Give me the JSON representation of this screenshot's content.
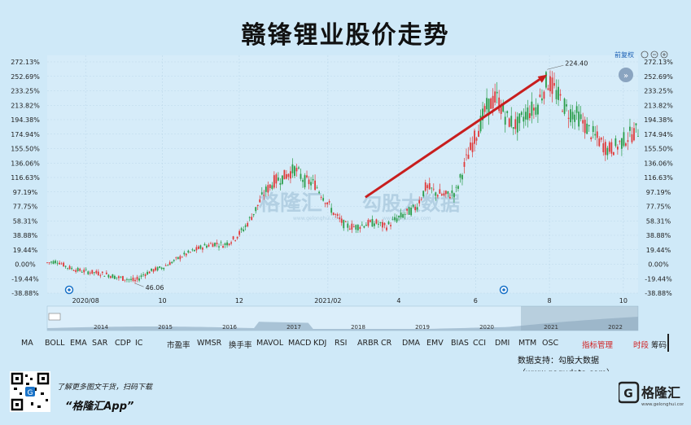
{
  "title": "赣锋锂业股价走势",
  "top_controls": {
    "adjust_label": "前复权",
    "icons": [
      "undo-icon",
      "zoom-out-icon",
      "zoom-in-icon"
    ]
  },
  "annotation": {
    "peak_label": "224.40",
    "low_label": "46.06"
  },
  "watermark": {
    "brand": "格隆汇",
    "brand_sub": "www.gelonghui.com",
    "data_brand": "勾股大数据",
    "data_sub": "www.gogudata.com"
  },
  "chart_data": {
    "type": "candlestick",
    "y_ticks_pct": [
      "272.13%",
      "252.69%",
      "233.25%",
      "213.82%",
      "194.38%",
      "174.94%",
      "155.50%",
      "136.06%",
      "116.63%",
      "97.19%",
      "77.75%",
      "58.31%",
      "38.88%",
      "19.44%",
      "0.00%",
      "-19.44%",
      "-38.88%"
    ],
    "y_ticks_right": [
      "272.13%",
      "252.69%",
      "233.25%",
      "213.82%",
      "194.38%",
      "174.94%",
      "155.50%",
      "136.06%",
      "116.63%",
      "97.19%",
      "77.75%",
      "58.31%",
      "38.88%",
      "19.44%",
      "0.00%",
      "-19.44%",
      "-38.88%"
    ],
    "ylim": [
      -38.88,
      272.13
    ],
    "x_ticks": [
      {
        "label": "2020/08",
        "pos": 0.065
      },
      {
        "label": "10",
        "pos": 0.195
      },
      {
        "label": "12",
        "pos": 0.325
      },
      {
        "label": "2021/02",
        "pos": 0.475
      },
      {
        "label": "4",
        "pos": 0.595
      },
      {
        "label": "6",
        "pos": 0.725
      },
      {
        "label": "8",
        "pos": 0.85
      },
      {
        "label": "10",
        "pos": 0.975
      }
    ],
    "trend_points_pct": [
      [
        0.0,
        2
      ],
      [
        0.02,
        4
      ],
      [
        0.04,
        -4
      ],
      [
        0.06,
        -8
      ],
      [
        0.08,
        -10
      ],
      [
        0.1,
        -12
      ],
      [
        0.12,
        -14
      ],
      [
        0.14,
        -18
      ],
      [
        0.16,
        -20
      ],
      [
        0.175,
        -23
      ],
      [
        0.19,
        -14
      ],
      [
        0.21,
        -8
      ],
      [
        0.23,
        -4
      ],
      [
        0.25,
        4
      ],
      [
        0.27,
        12
      ],
      [
        0.29,
        18
      ],
      [
        0.31,
        24
      ],
      [
        0.33,
        28
      ],
      [
        0.35,
        26
      ],
      [
        0.37,
        34
      ],
      [
        0.39,
        48
      ],
      [
        0.41,
        70
      ],
      [
        0.43,
        96
      ],
      [
        0.45,
        112
      ],
      [
        0.47,
        118
      ],
      [
        0.49,
        128
      ],
      [
        0.51,
        112
      ],
      [
        0.53,
        108
      ],
      [
        0.55,
        88
      ],
      [
        0.57,
        66
      ],
      [
        0.59,
        52
      ],
      [
        0.61,
        50
      ],
      [
        0.63,
        54
      ],
      [
        0.65,
        56
      ],
      [
        0.67,
        50
      ],
      [
        0.69,
        60
      ],
      [
        0.71,
        68
      ],
      [
        0.73,
        76
      ],
      [
        0.75,
        104
      ],
      [
        0.77,
        96
      ],
      [
        0.79,
        92
      ],
      [
        0.81,
        98
      ],
      [
        0.83,
        140
      ],
      [
        0.85,
        176
      ],
      [
        0.87,
        210
      ],
      [
        0.89,
        224
      ],
      [
        0.91,
        196
      ],
      [
        0.93,
        186
      ],
      [
        0.95,
        204
      ],
      [
        0.97,
        212
      ],
      [
        0.99,
        248
      ],
      [
        1.01,
        228
      ],
      [
        1.03,
        206
      ],
      [
        1.05,
        200
      ],
      [
        1.07,
        182
      ],
      [
        1.09,
        168
      ],
      [
        1.11,
        154
      ],
      [
        1.13,
        160
      ],
      [
        1.15,
        172
      ],
      [
        1.17,
        180
      ]
    ],
    "arrow": {
      "from": [
        0.63,
        90
      ],
      "to": [
        0.99,
        255
      ]
    },
    "overview_years": [
      "2014",
      "2015",
      "2016",
      "2017",
      "2018",
      "2019",
      "2020",
      "2021",
      "2022"
    ]
  },
  "indicators": [
    "MA",
    "BOLL",
    "EMA",
    "SAR",
    "CDP",
    "IC",
    "市盈率",
    "WMSR",
    "换手率",
    "MAVOL",
    "MACD",
    "KDJ",
    "RSI",
    "ARBR",
    "CR",
    "DMA",
    "EMV",
    "BIAS",
    "CCI",
    "DMI",
    "MTM",
    "OSC",
    "指标管理",
    "时段",
    "筹码"
  ],
  "data_support": "数据支持：勾股大数据（www.gogudata.com）",
  "footer": {
    "line1": "了解更多图文干货，扫码下载",
    "line2": "“格隆汇App”",
    "logo": "格隆汇",
    "logo_sub": "www.gelonghui.com"
  }
}
